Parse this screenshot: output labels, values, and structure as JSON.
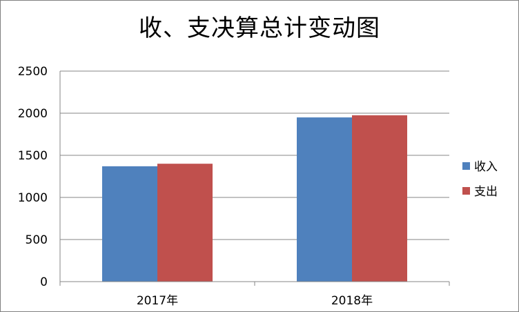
{
  "chart_data": {
    "type": "bar",
    "title": "收、支决算总计变动图",
    "categories": [
      "2017年",
      "2018年"
    ],
    "series": [
      {
        "name": "收入",
        "values": [
          1370,
          1950
        ],
        "color": "#4f81bd"
      },
      {
        "name": "支出",
        "values": [
          1400,
          1975
        ],
        "color": "#c0504d"
      }
    ],
    "ylim": [
      0,
      2500
    ],
    "yticks": [
      0,
      500,
      1000,
      1500,
      2000,
      2500
    ],
    "grid": true,
    "legend_position": "right"
  }
}
